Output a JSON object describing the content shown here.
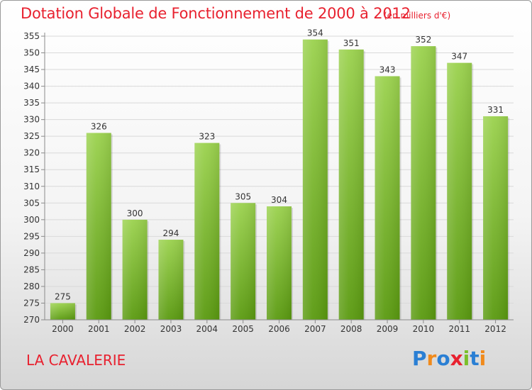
{
  "header": {
    "title": "Dotation Globale de Fonctionnement de 2000 à 2012",
    "unit": "(en milliers d'€)"
  },
  "footer": {
    "city": "LA CAVALERIE",
    "logo_text": "Proxiti"
  },
  "colors": {
    "accent": "#e8212f",
    "bar_top": "#9bd24e",
    "bar_bottom": "#5a9a10"
  },
  "chart_data": {
    "type": "bar",
    "categories": [
      "2000",
      "2001",
      "2002",
      "2003",
      "2004",
      "2005",
      "2006",
      "2007",
      "2008",
      "2009",
      "2010",
      "2011",
      "2012"
    ],
    "values": [
      275,
      326,
      300,
      294,
      323,
      305,
      304,
      354,
      351,
      343,
      352,
      347,
      331
    ],
    "ylim": [
      270,
      355
    ],
    "yticks": [
      270,
      275,
      280,
      285,
      290,
      295,
      300,
      305,
      310,
      315,
      320,
      325,
      330,
      335,
      340,
      345,
      350,
      355
    ],
    "grid": true
  }
}
